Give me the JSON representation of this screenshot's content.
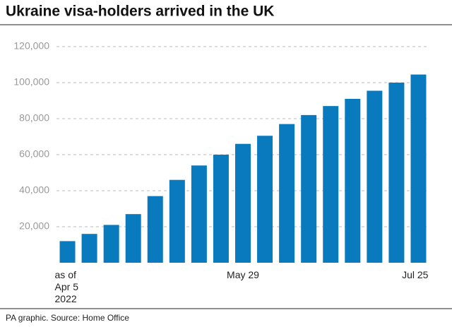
{
  "chart_data": {
    "type": "bar",
    "title": "Ukraine visa-holders arrived in the UK",
    "source": "PA graphic. Source: Home Office",
    "categories": [
      "as of\nApr 5\n2022",
      null,
      null,
      null,
      null,
      null,
      null,
      null,
      "May 29",
      null,
      null,
      null,
      null,
      null,
      null,
      null,
      "Jul 25"
    ],
    "values": [
      12000,
      16000,
      21000,
      27000,
      37000,
      46000,
      54000,
      60000,
      66000,
      70500,
      77000,
      82000,
      87000,
      91000,
      95500,
      100000,
      104500
    ],
    "color": "#0a7abf",
    "ylim": [
      0,
      120000
    ],
    "yticks": [
      {
        "value": 20000,
        "label": "20,000"
      },
      {
        "value": 40000,
        "label": "40,000"
      },
      {
        "value": 60000,
        "label": "60,000"
      },
      {
        "value": 80000,
        "label": "80,000"
      },
      {
        "value": 100000,
        "label": "100,000"
      },
      {
        "value": 120000,
        "label": "120,000"
      }
    ],
    "grid": true
  }
}
